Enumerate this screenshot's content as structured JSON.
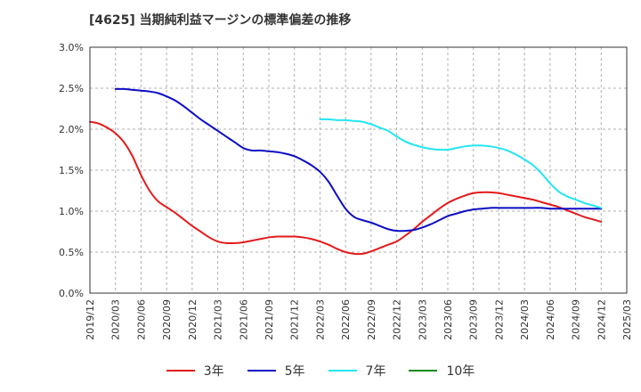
{
  "chart_data": {
    "type": "line",
    "title": "[4625]  当期純利益マージンの標準偏差の推移",
    "xlabel": "",
    "ylabel": "",
    "ylim": [
      0,
      3.0
    ],
    "y_ticks": [
      "0.0%",
      "0.5%",
      "1.0%",
      "1.5%",
      "2.0%",
      "2.5%",
      "3.0%"
    ],
    "y_tick_values": [
      0,
      0.5,
      1.0,
      1.5,
      2.0,
      2.5,
      3.0
    ],
    "x_ticks": [
      "2019/12",
      "2020/03",
      "2020/06",
      "2020/09",
      "2020/12",
      "2021/03",
      "2021/06",
      "2021/09",
      "2021/12",
      "2022/03",
      "2022/06",
      "2022/09",
      "2022/12",
      "2023/03",
      "2023/06",
      "2023/09",
      "2023/12",
      "2024/03",
      "2024/06",
      "2024/09",
      "2024/12",
      "2025/03"
    ],
    "grid": "horizontal dashed",
    "legend_position": "bottom",
    "series": [
      {
        "name": "3年",
        "color": "#e41a1c",
        "x": [
          "2019/12",
          "2020/01",
          "2020/02",
          "2020/03",
          "2020/04",
          "2020/05",
          "2020/06",
          "2020/07",
          "2020/08",
          "2020/09",
          "2020/10",
          "2020/11",
          "2020/12",
          "2021/01",
          "2021/02",
          "2021/03",
          "2021/04",
          "2021/05",
          "2021/06",
          "2021/07",
          "2021/08",
          "2021/09",
          "2021/10",
          "2021/11",
          "2021/12",
          "2022/01",
          "2022/02",
          "2022/03",
          "2022/04",
          "2022/05",
          "2022/06",
          "2022/07",
          "2022/08",
          "2022/09",
          "2022/10",
          "2022/11",
          "2022/12",
          "2023/01",
          "2023/02",
          "2023/03",
          "2023/04",
          "2023/05",
          "2023/06",
          "2023/07",
          "2023/08",
          "2023/09",
          "2023/10",
          "2023/11",
          "2023/12",
          "2024/01",
          "2024/02",
          "2024/03",
          "2024/04",
          "2024/05",
          "2024/06",
          "2024/07",
          "2024/08",
          "2024/09",
          "2024/10",
          "2024/11",
          "2024/12"
        ],
        "values": [
          2.09,
          2.07,
          2.02,
          1.95,
          1.84,
          1.67,
          1.44,
          1.25,
          1.12,
          1.05,
          0.98,
          0.9,
          0.82,
          0.75,
          0.68,
          0.63,
          0.61,
          0.61,
          0.62,
          0.64,
          0.66,
          0.68,
          0.69,
          0.69,
          0.69,
          0.68,
          0.66,
          0.63,
          0.59,
          0.54,
          0.5,
          0.48,
          0.48,
          0.51,
          0.55,
          0.59,
          0.63,
          0.7,
          0.78,
          0.87,
          0.95,
          1.03,
          1.1,
          1.15,
          1.19,
          1.22,
          1.23,
          1.23,
          1.22,
          1.2,
          1.18,
          1.16,
          1.14,
          1.11,
          1.08,
          1.05,
          1.01,
          0.97,
          0.93,
          0.9,
          0.87
        ]
      },
      {
        "name": "5年",
        "color": "#0d0dc4",
        "x": [
          "2020/03",
          "2020/04",
          "2020/05",
          "2020/06",
          "2020/07",
          "2020/08",
          "2020/09",
          "2020/10",
          "2020/11",
          "2020/12",
          "2021/01",
          "2021/02",
          "2021/03",
          "2021/04",
          "2021/05",
          "2021/06",
          "2021/07",
          "2021/08",
          "2021/09",
          "2021/10",
          "2021/11",
          "2021/12",
          "2022/01",
          "2022/02",
          "2022/03",
          "2022/04",
          "2022/05",
          "2022/06",
          "2022/07",
          "2022/08",
          "2022/09",
          "2022/10",
          "2022/11",
          "2022/12",
          "2023/01",
          "2023/02",
          "2023/03",
          "2023/04",
          "2023/05",
          "2023/06",
          "2023/07",
          "2023/08",
          "2023/09",
          "2023/10",
          "2023/11",
          "2023/12",
          "2024/01",
          "2024/02",
          "2024/03",
          "2024/04",
          "2024/05",
          "2024/06",
          "2024/07",
          "2024/08",
          "2024/09",
          "2024/10",
          "2024/11",
          "2024/12"
        ],
        "values": [
          2.49,
          2.49,
          2.48,
          2.47,
          2.46,
          2.44,
          2.4,
          2.35,
          2.28,
          2.2,
          2.12,
          2.05,
          1.98,
          1.91,
          1.84,
          1.77,
          1.74,
          1.74,
          1.73,
          1.72,
          1.7,
          1.67,
          1.62,
          1.56,
          1.48,
          1.36,
          1.19,
          1.03,
          0.93,
          0.89,
          0.86,
          0.82,
          0.78,
          0.76,
          0.76,
          0.77,
          0.8,
          0.84,
          0.89,
          0.94,
          0.97,
          1.0,
          1.02,
          1.03,
          1.04,
          1.04,
          1.04,
          1.04,
          1.04,
          1.04,
          1.04,
          1.03,
          1.03,
          1.03,
          1.03,
          1.03,
          1.03,
          1.03
        ]
      },
      {
        "name": "7年",
        "color": "#22e6f2",
        "x": [
          "2022/03",
          "2022/04",
          "2022/05",
          "2022/06",
          "2022/07",
          "2022/08",
          "2022/09",
          "2022/10",
          "2022/11",
          "2022/12",
          "2023/01",
          "2023/02",
          "2023/03",
          "2023/04",
          "2023/05",
          "2023/06",
          "2023/07",
          "2023/08",
          "2023/09",
          "2023/10",
          "2023/11",
          "2023/12",
          "2024/01",
          "2024/02",
          "2024/03",
          "2024/04",
          "2024/05",
          "2024/06",
          "2024/07",
          "2024/08",
          "2024/09",
          "2024/10",
          "2024/11",
          "2024/12"
        ],
        "values": [
          2.12,
          2.12,
          2.11,
          2.11,
          2.1,
          2.09,
          2.06,
          2.02,
          1.98,
          1.91,
          1.85,
          1.81,
          1.78,
          1.76,
          1.75,
          1.75,
          1.77,
          1.79,
          1.8,
          1.8,
          1.79,
          1.77,
          1.74,
          1.69,
          1.63,
          1.56,
          1.46,
          1.34,
          1.24,
          1.18,
          1.14,
          1.1,
          1.07,
          1.04
        ]
      },
      {
        "name": "10年",
        "color": "#138a13",
        "x": [],
        "values": []
      }
    ]
  }
}
